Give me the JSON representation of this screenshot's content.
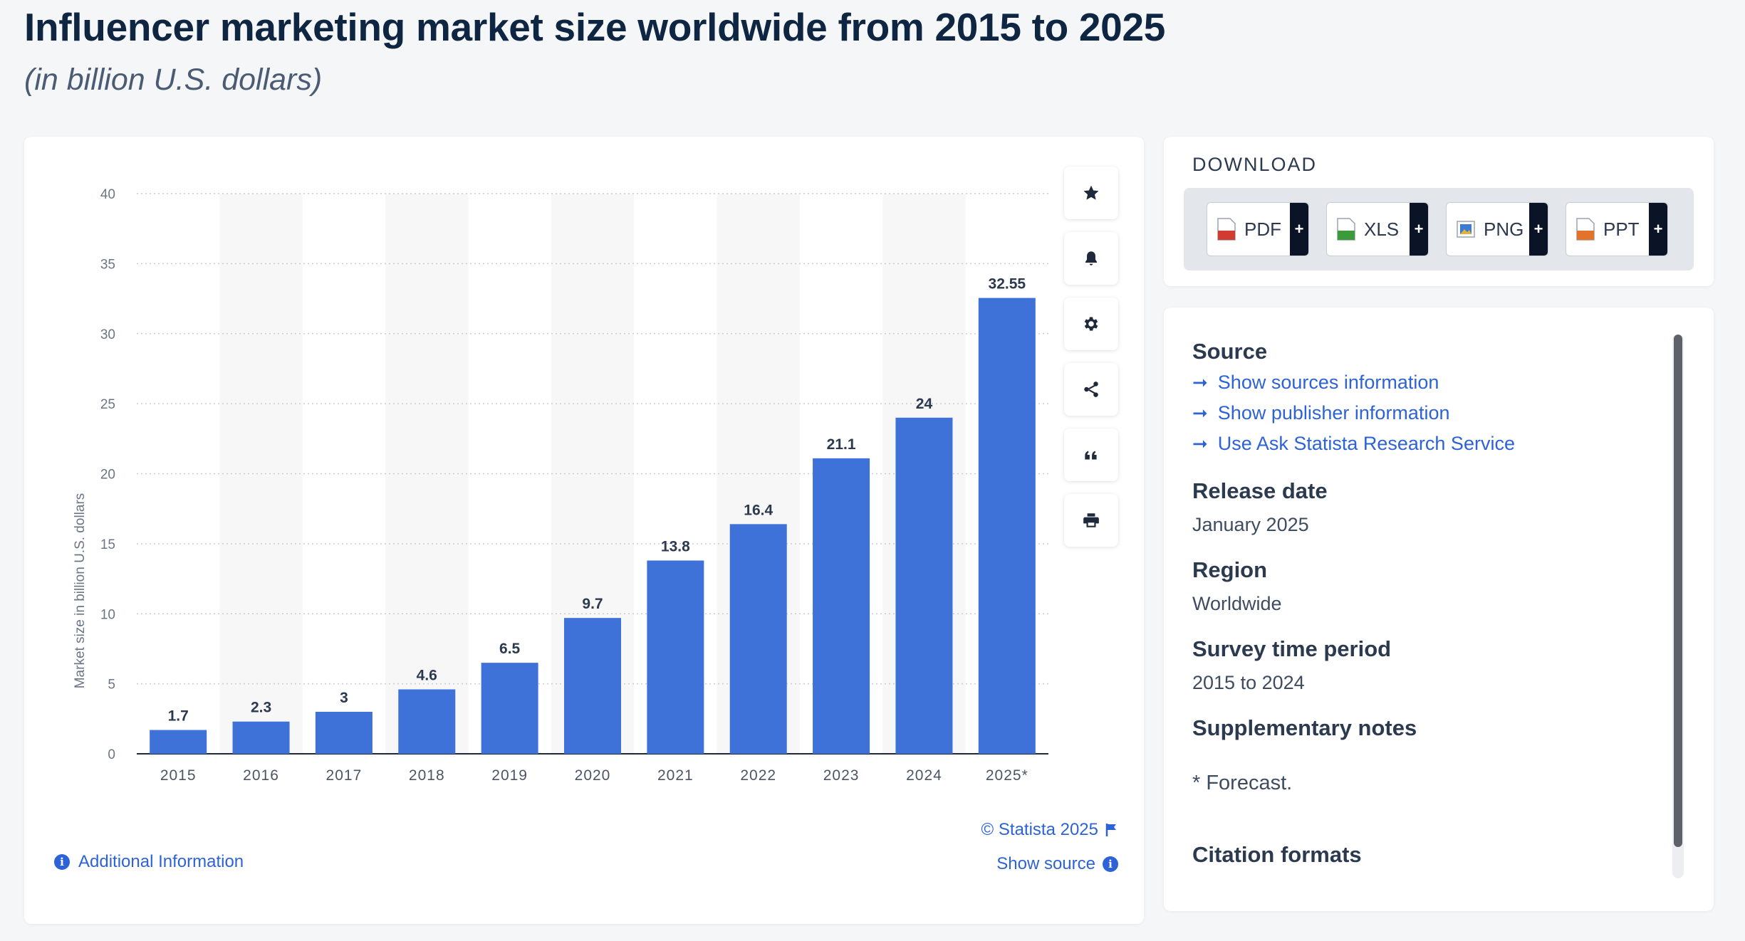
{
  "page": {
    "title": "Influencer marketing market size worldwide from 2015 to 2025",
    "subtitle": "(in billion U.S. dollars)"
  },
  "chart_data": {
    "type": "bar",
    "title": "Influencer marketing market size worldwide from 2015 to 2025",
    "subtitle": "(in billion U.S. dollars)",
    "categories": [
      "2015",
      "2016",
      "2017",
      "2018",
      "2019",
      "2020",
      "2021",
      "2022",
      "2023",
      "2024",
      "2025*"
    ],
    "values": [
      1.7,
      2.3,
      3,
      4.6,
      6.5,
      9.7,
      13.8,
      16.4,
      21.1,
      24,
      32.55
    ],
    "value_labels": [
      "1.7",
      "2.3",
      "3",
      "4.6",
      "6.5",
      "9.7",
      "13.8",
      "16.4",
      "21.1",
      "24",
      "32.55"
    ],
    "xlabel": "",
    "ylabel": "Market size in billion U.S. dollars",
    "ylim": [
      0,
      40
    ],
    "yticks": [
      "0",
      "5",
      "10",
      "15",
      "20",
      "25",
      "30",
      "35",
      "40"
    ],
    "grid": true,
    "bar_color": "#3f72d9"
  },
  "chart_footer": {
    "credit": "© Statista 2025",
    "show_source": "Show source",
    "additional_info": "Additional Information"
  },
  "toolbar": {
    "icons": [
      "star-icon",
      "bell-icon",
      "gear-icon",
      "share-icon",
      "quote-icon",
      "print-icon"
    ]
  },
  "download": {
    "heading": "DOWNLOAD",
    "formats": [
      {
        "label": "PDF",
        "color": "#d13b32"
      },
      {
        "label": "XLS",
        "color": "#3d9a3a"
      },
      {
        "label": "PNG",
        "color": "#3a7bd5"
      },
      {
        "label": "PPT",
        "color": "#e2732b"
      }
    ],
    "plus": "+"
  },
  "details": {
    "source_heading": "Source",
    "source_links": [
      "Show sources information",
      "Show publisher information",
      "Use Ask Statista Research Service"
    ],
    "release_heading": "Release date",
    "release_value": "January 2025",
    "region_heading": "Region",
    "region_value": "Worldwide",
    "survey_heading": "Survey time period",
    "survey_value": "2015 to 2024",
    "notes_heading": "Supplementary notes",
    "notes_value": "* Forecast.",
    "citation_heading": "Citation formats"
  },
  "colors": {
    "accent": "#2d63d6",
    "title": "#0f2643"
  }
}
